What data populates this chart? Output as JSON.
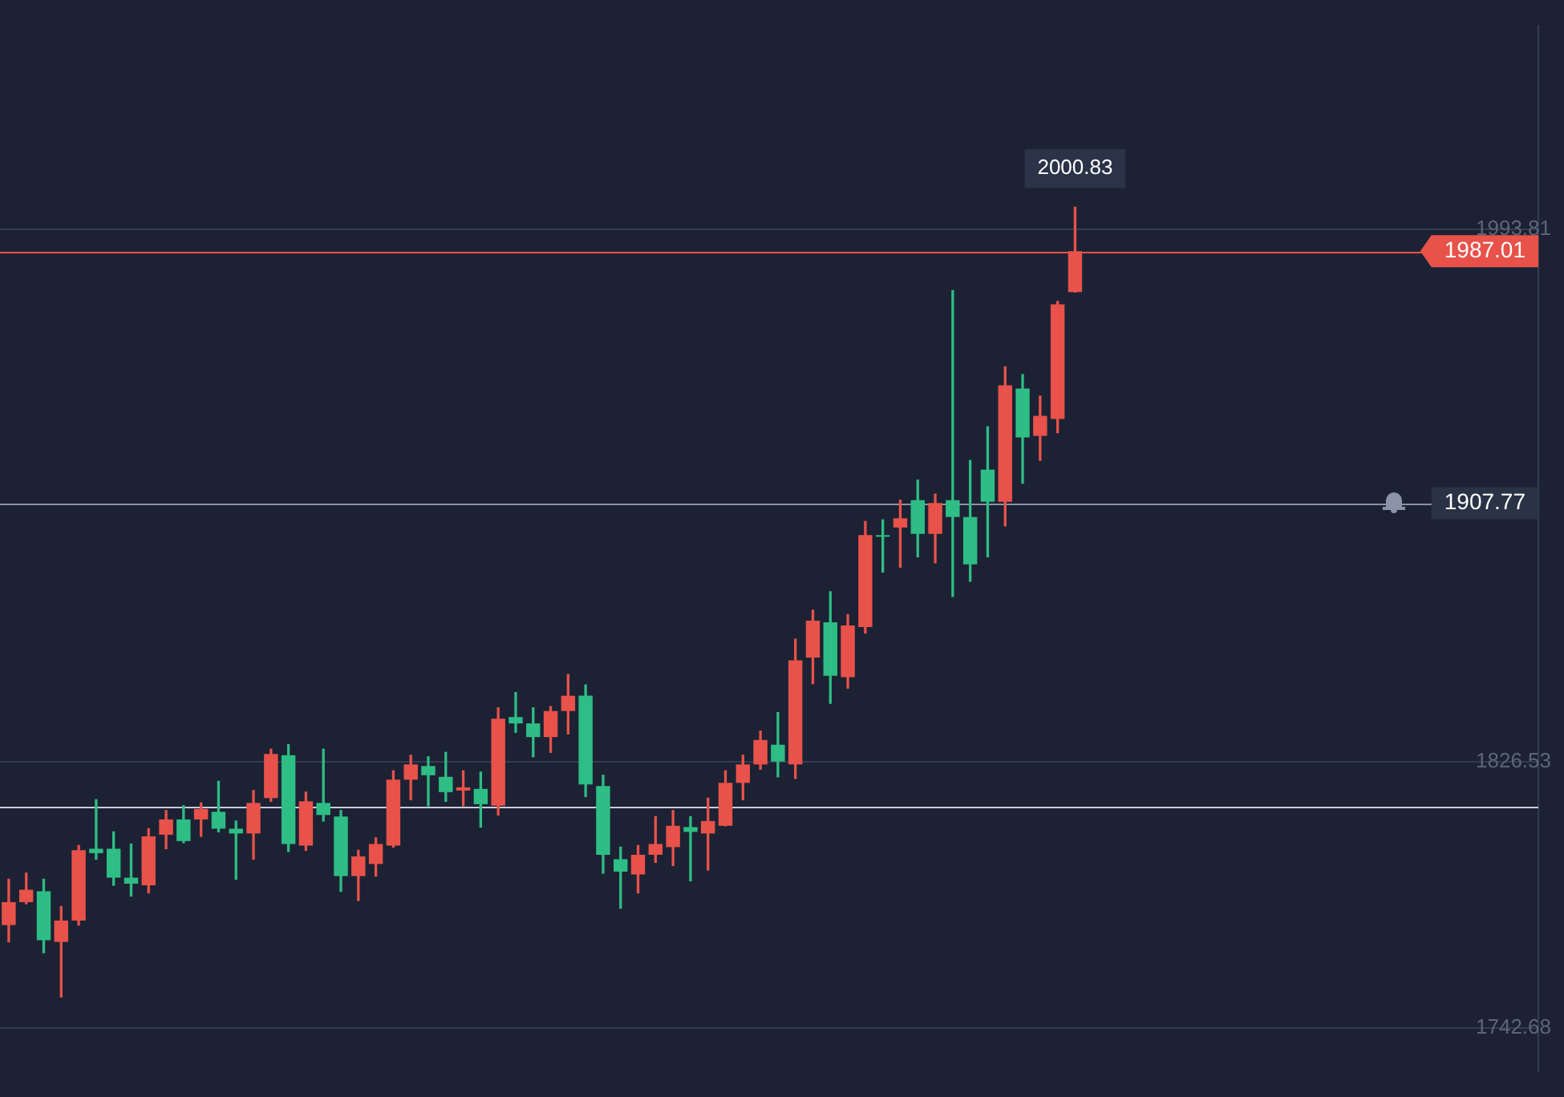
{
  "chart_data": {
    "type": "candlestick",
    "categories": [
      null,
      null,
      null,
      null,
      null,
      null,
      null,
      null,
      null,
      null,
      null,
      null,
      null,
      null,
      null,
      null,
      null,
      null,
      null,
      null,
      null,
      null,
      null,
      null,
      null,
      null,
      null,
      null,
      null,
      null,
      null,
      null,
      null,
      null,
      null,
      null,
      null,
      null,
      null,
      null,
      null,
      null,
      null,
      null,
      null,
      null,
      null,
      null,
      null,
      null,
      null,
      null,
      null,
      null,
      null,
      null,
      null,
      null,
      null,
      null,
      null,
      null,
      null,
      null,
      null,
      null,
      null,
      null,
      null,
      null,
      null,
      null,
      null,
      null,
      null,
      null,
      null,
      null,
      null,
      null,
      null,
      null,
      null,
      null,
      null,
      null,
      null,
      null
    ],
    "ohlc": [
      [
        1775.1,
        1789.5,
        1769.8,
        1782.3
      ],
      [
        1782.3,
        1791.4,
        1781.8,
        1786.2
      ],
      [
        1785.7,
        1789.5,
        1766.4,
        1770.3
      ],
      [
        1769.8,
        1780.9,
        1752.5,
        1776.5
      ],
      [
        1776.5,
        1800.1,
        1775.1,
        1798.6
      ],
      [
        1799.1,
        1814.5,
        1795.8,
        1797.7
      ],
      [
        1799.1,
        1804.4,
        1787.6,
        1790.0
      ],
      [
        1790.0,
        1800.6,
        1784.2,
        1788.1
      ],
      [
        1787.6,
        1805.4,
        1785.2,
        1803.0
      ],
      [
        1803.5,
        1811.1,
        1799.1,
        1808.3
      ],
      [
        1808.3,
        1812.6,
        1801.0,
        1801.5
      ],
      [
        1808.3,
        1813.5,
        1803.0,
        1811.6
      ],
      [
        1810.7,
        1820.3,
        1804.4,
        1805.4
      ],
      [
        1805.4,
        1807.8,
        1789.5,
        1803.9
      ],
      [
        1803.9,
        1817.4,
        1795.8,
        1813.5
      ],
      [
        1815.0,
        1830.4,
        1814.0,
        1828.9
      ],
      [
        1828.5,
        1831.8,
        1798.2,
        1800.6
      ],
      [
        1800.1,
        1816.9,
        1798.6,
        1814.0
      ],
      [
        1813.5,
        1830.4,
        1807.8,
        1809.7
      ],
      [
        1809.2,
        1811.1,
        1785.7,
        1790.5
      ],
      [
        1790.5,
        1798.6,
        1782.8,
        1796.7
      ],
      [
        1794.3,
        1802.5,
        1790.5,
        1800.6
      ],
      [
        1800.1,
        1823.6,
        1799.6,
        1820.8
      ],
      [
        1820.8,
        1828.5,
        1814.5,
        1825.6
      ],
      [
        1825.1,
        1828.0,
        1812.6,
        1822.2
      ],
      [
        1821.7,
        1829.4,
        1814.0,
        1816.9
      ],
      [
        1817.4,
        1823.6,
        1812.6,
        1818.4
      ],
      [
        1817.9,
        1823.2,
        1805.9,
        1813.1
      ],
      [
        1812.6,
        1843.4,
        1809.7,
        1840.0
      ],
      [
        1840.5,
        1848.2,
        1835.7,
        1838.5
      ],
      [
        1838.5,
        1843.4,
        1828.0,
        1834.2
      ],
      [
        1834.2,
        1843.8,
        1829.4,
        1842.4
      ],
      [
        1842.4,
        1853.9,
        1835.2,
        1847.2
      ],
      [
        1847.2,
        1850.6,
        1815.5,
        1819.3
      ],
      [
        1818.8,
        1822.2,
        1791.4,
        1797.2
      ],
      [
        1795.8,
        1799.6,
        1780.4,
        1791.9
      ],
      [
        1791.0,
        1800.1,
        1785.2,
        1797.2
      ],
      [
        1797.2,
        1809.2,
        1794.8,
        1800.6
      ],
      [
        1799.6,
        1811.1,
        1793.8,
        1806.3
      ],
      [
        1805.9,
        1809.2,
        1789.0,
        1804.4
      ],
      [
        1803.9,
        1815.0,
        1792.4,
        1807.8
      ],
      [
        1806.3,
        1823.6,
        1806.3,
        1819.8
      ],
      [
        1819.8,
        1828.5,
        1814.5,
        1825.6
      ],
      [
        1825.6,
        1836.1,
        1824.1,
        1833.3
      ],
      [
        1831.8,
        1841.9,
        1821.7,
        1826.5
      ],
      [
        1825.6,
        1865.0,
        1821.2,
        1858.3
      ],
      [
        1859.2,
        1874.1,
        1851.0,
        1870.8
      ],
      [
        1870.3,
        1879.9,
        1844.8,
        1853.5
      ],
      [
        1853.0,
        1872.7,
        1849.6,
        1869.3
      ],
      [
        1868.8,
        1902.0,
        1866.9,
        1897.7
      ],
      [
        1897.7,
        1902.5,
        1886.1,
        1897.2
      ],
      [
        1900.1,
        1908.7,
        1887.6,
        1903.0
      ],
      [
        1908.7,
        1915.0,
        1890.9,
        1898.1
      ],
      [
        1898.1,
        1910.6,
        1889.0,
        1907.8
      ],
      [
        1908.7,
        1974.6,
        1878.4,
        1903.4
      ],
      [
        1903.4,
        1921.2,
        1883.2,
        1888.5
      ],
      [
        1918.3,
        1931.8,
        1890.9,
        1908.2
      ],
      [
        1908.2,
        1950.6,
        1900.6,
        1944.8
      ],
      [
        1943.8,
        1948.2,
        1914.0,
        1928.4
      ],
      [
        1928.9,
        1941.4,
        1921.2,
        1935.2
      ],
      [
        1934.2,
        1971.2,
        1929.9,
        1970.3
      ],
      [
        1974.1,
        2000.83,
        1974.1,
        1987.01
      ],
      null,
      null,
      null,
      null,
      null,
      null,
      null,
      null,
      null,
      null,
      null,
      null,
      null,
      null,
      null,
      null,
      null,
      null,
      null,
      null,
      null,
      null,
      null,
      null,
      null,
      null
    ],
    "colors": [
      "#e8524a",
      "#e8524a",
      "#2ebd85",
      "#e8524a",
      "#e8524a",
      "#2ebd85",
      "#2ebd85",
      "#2ebd85",
      "#e8524a",
      "#e8524a",
      "#2ebd85",
      "#e8524a",
      "#2ebd85",
      "#2ebd85",
      "#e8524a",
      "#e8524a",
      "#2ebd85",
      "#e8524a",
      "#2ebd85",
      "#2ebd85",
      "#e8524a",
      "#e8524a",
      "#e8524a",
      "#e8524a",
      "#2ebd85",
      "#2ebd85",
      "#e8524a",
      "#2ebd85",
      "#e8524a",
      "#2ebd85",
      "#2ebd85",
      "#e8524a",
      "#e8524a",
      "#2ebd85",
      "#2ebd85",
      "#2ebd85",
      "#e8524a",
      "#e8524a",
      "#e8524a",
      "#2ebd85",
      "#e8524a",
      "#e8524a",
      "#e8524a",
      "#e8524a",
      "#2ebd85",
      "#e8524a",
      "#e8524a",
      "#2ebd85",
      "#e8524a",
      "#e8524a",
      "#2ebd85",
      "#e8524a",
      "#2ebd85",
      "#e8524a",
      "#2ebd85",
      "#2ebd85",
      "#2ebd85",
      "#e8524a",
      "#2ebd85",
      "#e8524a",
      "#e8524a",
      "#e8524a",
      null,
      null,
      null,
      null,
      null,
      null,
      null,
      null,
      null,
      null,
      null,
      null,
      null,
      null,
      null,
      null,
      null,
      null,
      null,
      null,
      null,
      null,
      null,
      null,
      null,
      null
    ],
    "ylim": [
      1729,
      2058
    ],
    "yticks": [
      1993.81,
      1826.53,
      1742.68
    ],
    "grid": "y",
    "tick_labels": "y",
    "ref_lines": [
      {
        "axis": "y",
        "value": 1987.01,
        "label": "1987.01",
        "color": "#e8524a"
      },
      {
        "axis": "y",
        "value": 1907.77,
        "label": "1907.77",
        "color": "#8a93a8"
      },
      {
        "axis": "y",
        "value": 1812.1,
        "label": null,
        "color": "#c8ccd6"
      }
    ],
    "annotations": [
      {
        "text": "2000.83",
        "y": 2000.83
      }
    ]
  }
}
